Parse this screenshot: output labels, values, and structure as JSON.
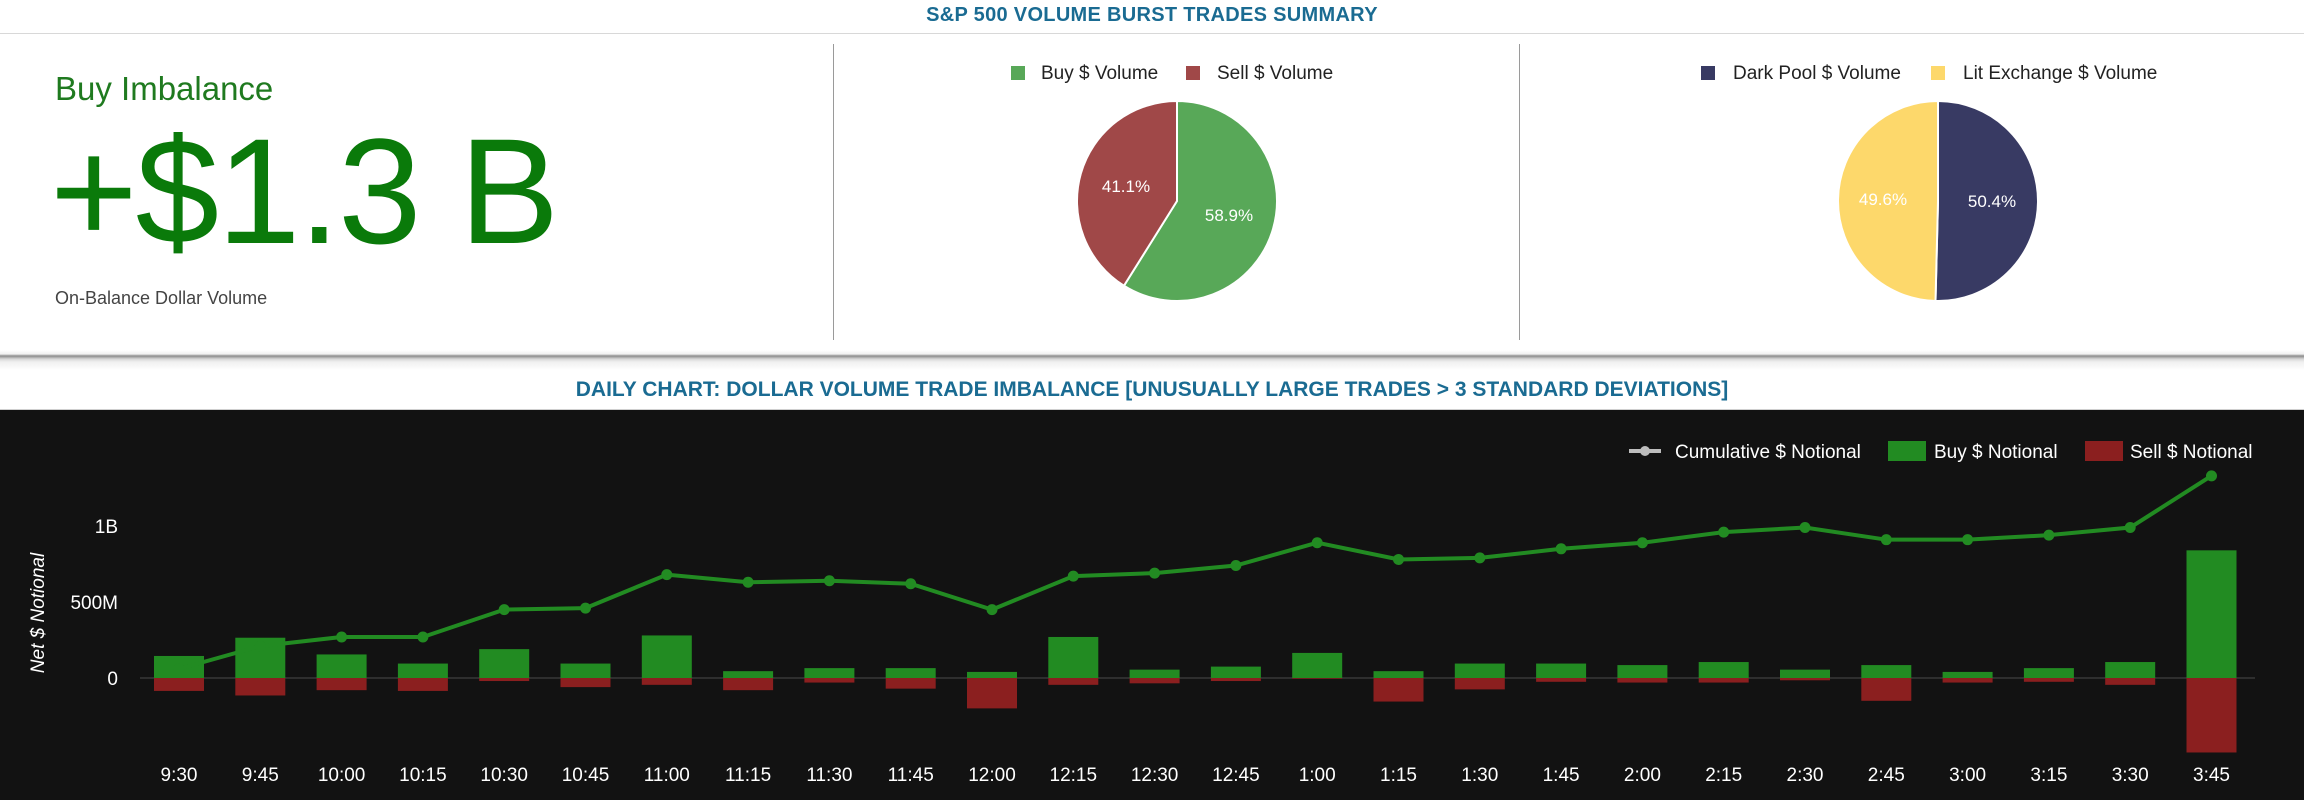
{
  "header": {
    "title": "S&P 500 VOLUME BURST TRADES SUMMARY"
  },
  "kpi": {
    "title": "Buy Imbalance",
    "value": "+$1.3 B",
    "subtitle": "On-Balance Dollar Volume",
    "color": "#0a7a0a"
  },
  "pie_charts": [
    {
      "legend": [
        {
          "label": "Buy $ Volume",
          "color": "#58a858"
        },
        {
          "label": "Sell $ Volume",
          "color": "#a04848"
        }
      ],
      "slices": [
        {
          "label": "58.9%",
          "value": 58.9,
          "color": "#58a858"
        },
        {
          "label": "41.1%",
          "value": 41.1,
          "color": "#a04848"
        }
      ]
    },
    {
      "legend": [
        {
          "label": "Dark Pool $ Volume",
          "color": "#383a63"
        },
        {
          "label": "Lit Exchange $ Volume",
          "color": "#fdd86b"
        }
      ],
      "slices": [
        {
          "label": "50.4%",
          "value": 50.4,
          "color": "#383a63"
        },
        {
          "label": "49.6%",
          "value": 49.6,
          "color": "#fdd86b"
        }
      ]
    }
  ],
  "chart_title": "DAILY CHART: DOLLAR VOLUME TRADE IMBALANCE [UNUSUALLY LARGE TRADES > 3 STANDARD DEVIATIONS]",
  "chart_data": {
    "type": "bar",
    "categories": [
      "9:30",
      "9:45",
      "10:00",
      "10:15",
      "10:30",
      "10:45",
      "11:00",
      "11:15",
      "11:30",
      "11:45",
      "12:00",
      "12:15",
      "12:30",
      "12:45",
      "1:00",
      "1:15",
      "1:30",
      "1:45",
      "2:00",
      "2:15",
      "2:30",
      "2:45",
      "3:00",
      "3:15",
      "3:30",
      "3:45"
    ],
    "ylabel": "Net $ Notional",
    "yticks": [
      {
        "value": 0,
        "label": "0"
      },
      {
        "value": 500,
        "label": "500M"
      },
      {
        "value": 1000,
        "label": "1B"
      }
    ],
    "ylim": [
      -500,
      1330
    ],
    "unit": "millions USD",
    "legend_position": "top-right",
    "series": [
      {
        "name": "Cumulative $ Notional",
        "type": "line",
        "color": "#228b22",
        "legend_color": "#bdbdbd",
        "values": [
          60,
          210,
          270,
          270,
          450,
          460,
          680,
          630,
          640,
          620,
          450,
          670,
          690,
          740,
          890,
          780,
          790,
          850,
          890,
          960,
          990,
          910,
          910,
          940,
          990,
          1330
        ]
      },
      {
        "name": "Buy $ Notional",
        "type": "bar",
        "color": "#228b22",
        "values": [
          145,
          265,
          155,
          95,
          190,
          95,
          280,
          45,
          65,
          65,
          40,
          270,
          55,
          75,
          165,
          45,
          95,
          95,
          85,
          105,
          55,
          85,
          40,
          65,
          105,
          840
        ]
      },
      {
        "name": "Sell $ Notional",
        "type": "bar",
        "color": "#8b1f1f",
        "values": [
          -85,
          -115,
          -80,
          -85,
          -20,
          -60,
          -45,
          -80,
          -30,
          -70,
          -200,
          -45,
          -35,
          -20,
          -5,
          -155,
          -75,
          -25,
          -30,
          -30,
          -15,
          -150,
          -30,
          -25,
          -45,
          -490
        ]
      }
    ]
  }
}
